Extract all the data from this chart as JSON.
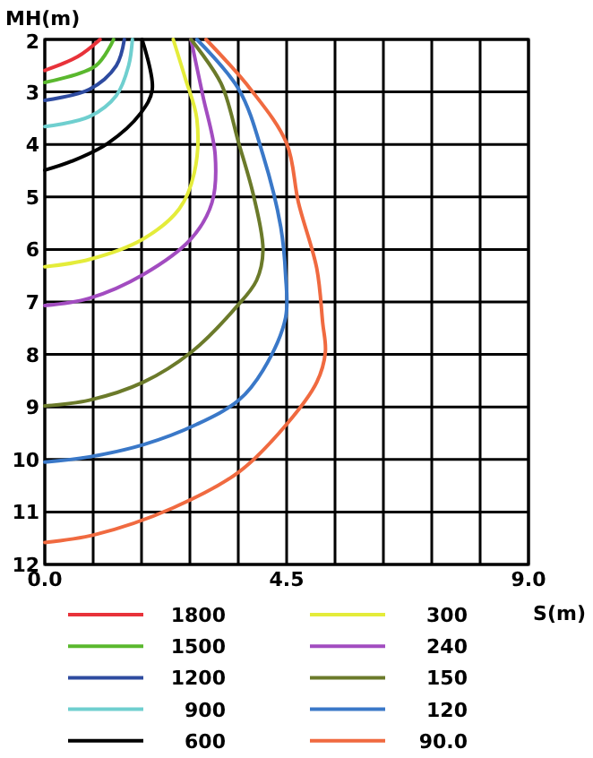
{
  "chart_data": {
    "type": "line",
    "xlabel": "S(m)",
    "ylabel": "MH(m)",
    "xlim": [
      0,
      9
    ],
    "ylim": [
      12,
      2
    ],
    "xticks": [
      {
        "value": 0,
        "label": "0.0"
      },
      {
        "value": 0.9,
        "label": null
      },
      {
        "value": 1.8,
        "label": null
      },
      {
        "value": 2.7,
        "label": null
      },
      {
        "value": 3.6,
        "label": null
      },
      {
        "value": 4.5,
        "label": "4.5"
      },
      {
        "value": 5.4,
        "label": null
      },
      {
        "value": 6.3,
        "label": null
      },
      {
        "value": 7.2,
        "label": null
      },
      {
        "value": 8.1,
        "label": null
      },
      {
        "value": 9,
        "label": "9.0"
      }
    ],
    "yticks": [
      2,
      3,
      4,
      5,
      6,
      7,
      8,
      9,
      10,
      11,
      12
    ],
    "grid": true,
    "legend": "bottom",
    "marker": "none",
    "line_style": "solid",
    "series": [
      {
        "name": "1800",
        "color": "#e8323a",
        "x": [
          1.03,
          0.61,
          0
        ],
        "values": [
          2,
          2.33,
          2.59
        ]
      },
      {
        "name": "1500",
        "color": "#5ab82e",
        "x": [
          1.28,
          0.95,
          0
        ],
        "values": [
          2,
          2.5,
          2.82
        ]
      },
      {
        "name": "1200",
        "color": "#2e4ba0",
        "x": [
          1.48,
          1.33,
          0.83,
          0
        ],
        "values": [
          2,
          2.5,
          2.95,
          3.16
        ]
      },
      {
        "name": "900",
        "color": "#6fcfcf",
        "x": [
          1.63,
          1.56,
          1.33,
          0.83,
          0
        ],
        "values": [
          2,
          2.5,
          3.07,
          3.47,
          3.66
        ]
      },
      {
        "name": "600",
        "color": "#000000",
        "x": [
          1.81,
          2.0,
          1.78,
          1.17,
          0.5,
          0
        ],
        "values": [
          2,
          2.95,
          3.41,
          3.98,
          4.32,
          4.49
        ]
      },
      {
        "name": "300",
        "color": "#e4ec3a",
        "x": [
          2.39,
          2.61,
          2.83,
          2.78,
          2.5,
          1.83,
          0.83,
          0
        ],
        "values": [
          2,
          2.73,
          3.52,
          4.55,
          5.23,
          5.8,
          6.19,
          6.33
        ]
      },
      {
        "name": "240",
        "color": "#a24cc0",
        "x": [
          2.72,
          2.94,
          3.17,
          3.11,
          2.72,
          1.83,
          0.83,
          0
        ],
        "values": [
          2,
          3.07,
          4.2,
          5.11,
          5.8,
          6.48,
          6.93,
          7.07
        ]
      },
      {
        "name": "150",
        "color": "#6b7a2a",
        "x": [
          2.72,
          3.28,
          3.61,
          3.89,
          4.06,
          3.94,
          3.56,
          2.72,
          1.83,
          0.83,
          0
        ],
        "values": [
          2,
          2.84,
          3.98,
          5.0,
          6.02,
          6.59,
          7.1,
          7.96,
          8.53,
          8.87,
          8.98
        ]
      },
      {
        "name": "120",
        "color": "#3a78c8",
        "x": [
          2.83,
          3.61,
          4.06,
          4.39,
          4.48,
          4.48,
          4.06,
          3.61,
          2.83,
          1.83,
          0.83,
          0
        ],
        "values": [
          2,
          2.95,
          4.2,
          5.57,
          6.48,
          7.3,
          8.3,
          8.87,
          9.33,
          9.72,
          9.95,
          10.05
        ]
      },
      {
        "name": "90.0",
        "color": "#f06a40",
        "x": [
          3.0,
          3.83,
          4.5,
          4.72,
          5.06,
          5.17,
          5.22,
          5.06,
          4.5,
          3.61,
          2.39,
          0.94,
          0
        ],
        "values": [
          2,
          2.95,
          3.98,
          5.11,
          6.36,
          7.39,
          7.96,
          8.53,
          9.33,
          10.24,
          10.92,
          11.43,
          11.58
        ]
      }
    ]
  }
}
